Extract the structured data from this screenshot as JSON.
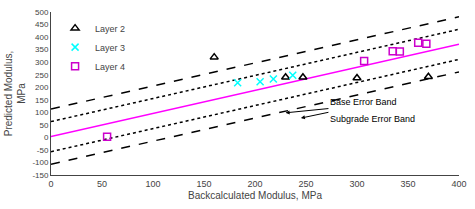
{
  "chart_data": {
    "type": "scatter",
    "xlabel": "Backcalculated Modulus, MPa",
    "ylabel": "Predicted Modulus,\nMPa",
    "xlim": [
      0,
      400
    ],
    "ylim": [
      -150,
      500
    ],
    "xticks": [
      0,
      50,
      100,
      150,
      200,
      250,
      300,
      350,
      400
    ],
    "yticks": [
      -150,
      -100,
      -50,
      0,
      50,
      100,
      150,
      200,
      250,
      300,
      350,
      400,
      450,
      500
    ],
    "grid": false,
    "legend": "upper left",
    "series": [
      {
        "type": "line",
        "color": "#FF00FF",
        "line_style": "solid",
        "x": [
          0,
          400
        ],
        "values": [
          3,
          371
        ]
      },
      {
        "type": "line",
        "color": "black",
        "line_style": "dotted",
        "x": [
          0,
          400
        ],
        "values": [
          63,
          431
        ]
      },
      {
        "type": "line",
        "color": "black",
        "line_style": "dotted",
        "x": [
          0,
          400
        ],
        "values": [
          -57,
          311
        ]
      },
      {
        "type": "line",
        "color": "black",
        "line_style": "dashed",
        "x": [
          0,
          400
        ],
        "values": [
          113,
          481
        ]
      },
      {
        "type": "line",
        "color": "black",
        "line_style": "dashed",
        "x": [
          0,
          400
        ],
        "values": [
          -107,
          261
        ]
      },
      {
        "name": "Layer 2",
        "type": "scatter",
        "marker": "triangle-open",
        "color": "black",
        "x": [
          160,
          230,
          247,
          300,
          370
        ],
        "values": [
          320,
          240,
          240,
          237,
          242
        ]
      },
      {
        "name": "Layer 3",
        "type": "scatter",
        "marker": "x",
        "color": "cyan",
        "x": [
          183,
          205,
          218,
          237
        ],
        "values": [
          218,
          222,
          233,
          248
        ]
      },
      {
        "name": "Layer 4",
        "type": "scatter",
        "marker": "square-open",
        "color": "#CC00CC",
        "x": [
          55,
          307,
          335,
          342,
          360,
          368
        ],
        "values": [
          3,
          305,
          343,
          342,
          377,
          373
        ]
      }
    ],
    "annotations": [
      {
        "text": "Base Error Band",
        "x": 230,
        "y": 98,
        "text_x": 272,
        "text_y": 115
      },
      {
        "text": "Subgrade Error Band",
        "x": 245,
        "y": 77,
        "text_x": 272,
        "text_y": 100
      }
    ]
  }
}
